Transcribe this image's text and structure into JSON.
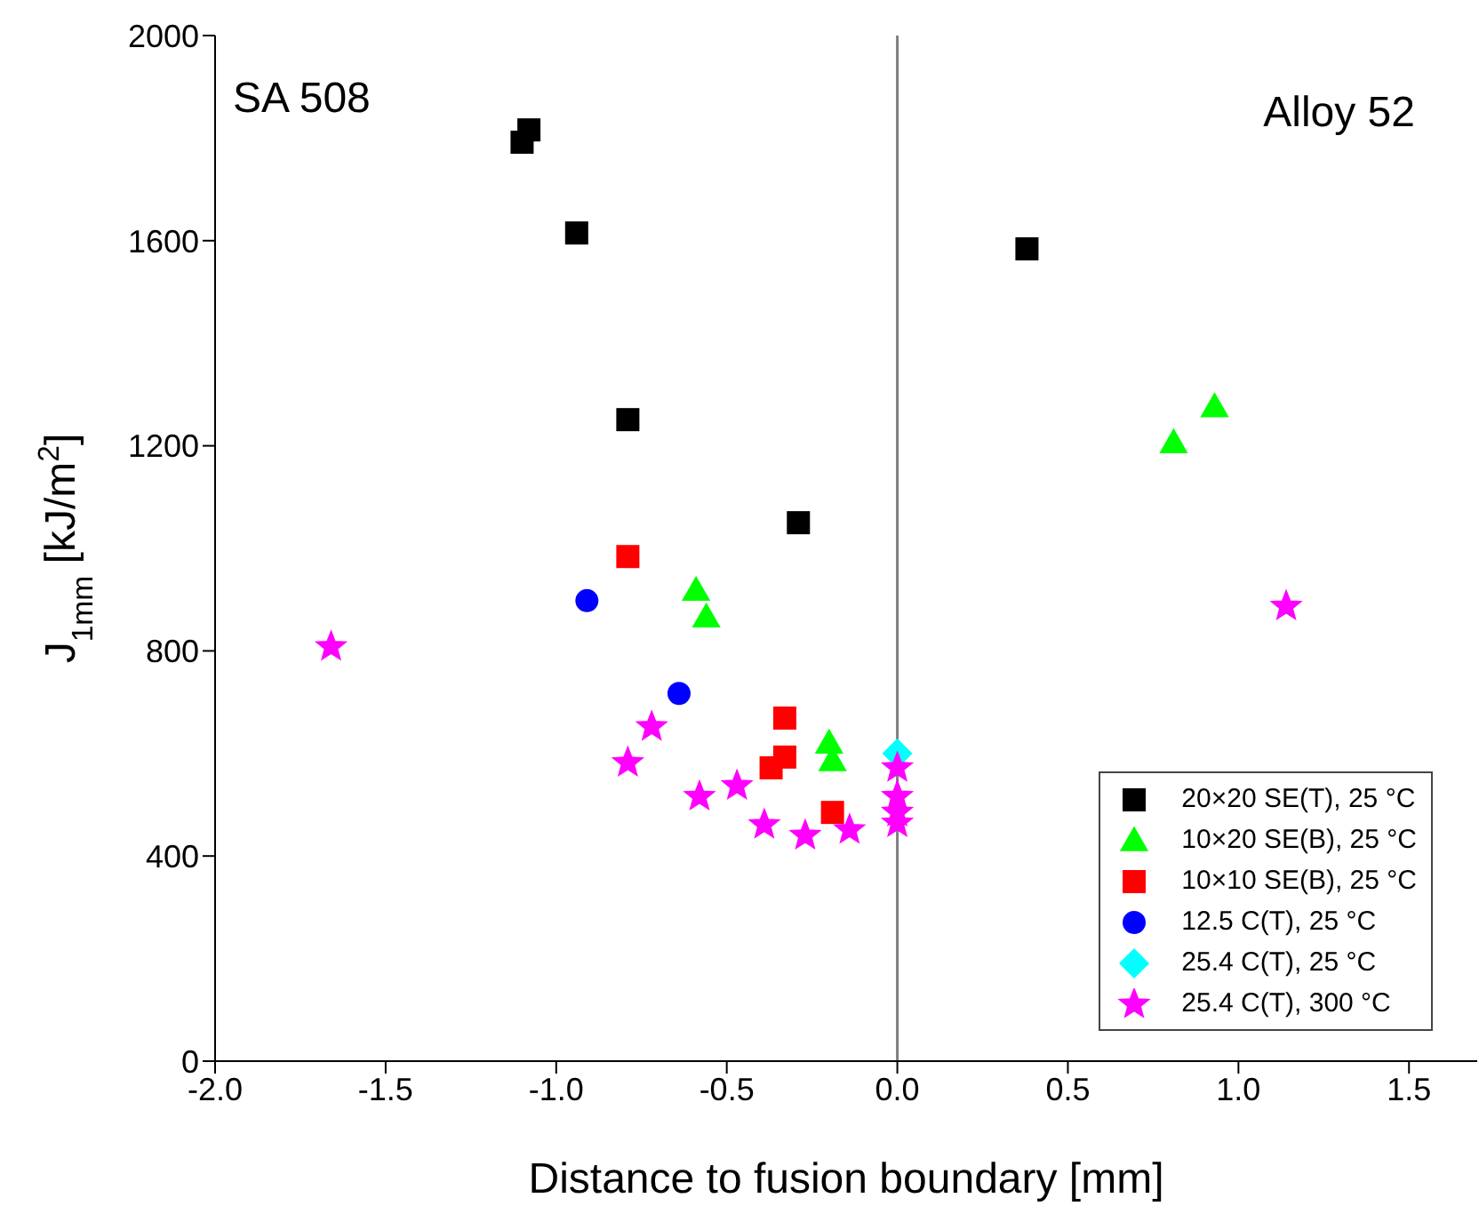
{
  "chart_data": {
    "type": "scatter",
    "xlabel": "Distance to fusion boundary [mm]",
    "ylabel": "J$_{1mm}$ [kJ/m$^{2}$]",
    "annotations": [
      "SA 508",
      "Alloy 52"
    ],
    "xlim": [
      -2.0,
      1.7
    ],
    "xticks": [
      {
        "value": -2.0,
        "label": "-2.0"
      },
      {
        "value": -1.5,
        "label": "-1.5"
      },
      {
        "value": -1.0,
        "label": "-1.0"
      },
      {
        "value": -0.5,
        "label": "-0.5"
      },
      {
        "value": 0.0,
        "label": "0.0"
      },
      {
        "value": 0.5,
        "label": "0.5"
      },
      {
        "value": 1.0,
        "label": "1.0"
      },
      {
        "value": 1.5,
        "label": "1.5"
      }
    ],
    "ylim": [
      0,
      2000
    ],
    "yticks": [
      0,
      400,
      800,
      1200,
      1600,
      2000
    ],
    "grid": false,
    "legend": "bottom right",
    "ref_lines": [
      {
        "axis": "x",
        "value": 0,
        "color": "#808080"
      }
    ],
    "series": [
      {
        "name": "20×20 SE(T), 25 °C",
        "color": "#000000",
        "marker": "square",
        "x": [
          -1.1,
          -1.08,
          -0.94,
          -0.79,
          -0.29,
          0.38
        ],
        "values": [
          1792,
          1816,
          1615,
          1251,
          1050,
          1584
        ]
      },
      {
        "name": "10×20 SE(B), 25 °C",
        "color": "#00ff00",
        "marker": "triangle",
        "x": [
          -0.59,
          -0.56,
          -0.2,
          -0.19,
          0.81,
          0.93
        ],
        "values": [
          918,
          866,
          620,
          586,
          1206,
          1276
        ]
      },
      {
        "name": "10×10 SE(B), 25 °C",
        "color": "#ff0000",
        "marker": "square",
        "x": [
          -0.79,
          -0.33,
          -0.33,
          -0.37,
          -0.19
        ],
        "values": [
          984,
          669,
          593,
          572,
          485
        ]
      },
      {
        "name": "12.5 C(T), 25 °C",
        "color": "#0000ff",
        "marker": "circle",
        "x": [
          -0.91
        ],
        "values": [
          898
        ]
      },
      {
        "color": "#0000ff",
        "marker": "circle",
        "x": [
          -0.64
        ],
        "values": [
          717
        ]
      },
      {
        "name": "25.4 C(T), 25 °C",
        "color": "#00ffff",
        "marker": "diamond",
        "x": [
          0.0
        ],
        "values": [
          600
        ]
      },
      {
        "name": "25.4 C(T), 300 °C",
        "color": "#ff00ff",
        "marker": "star",
        "x": [
          -1.66,
          -0.72,
          -0.79,
          -0.58,
          -0.47,
          -0.39,
          -0.27,
          -0.14,
          0.0,
          0.0,
          0.0,
          0.0,
          1.14
        ],
        "values": [
          808,
          652,
          582,
          516,
          537,
          461,
          440,
          451,
          572,
          516,
          485,
          464,
          887
        ]
      }
    ]
  }
}
